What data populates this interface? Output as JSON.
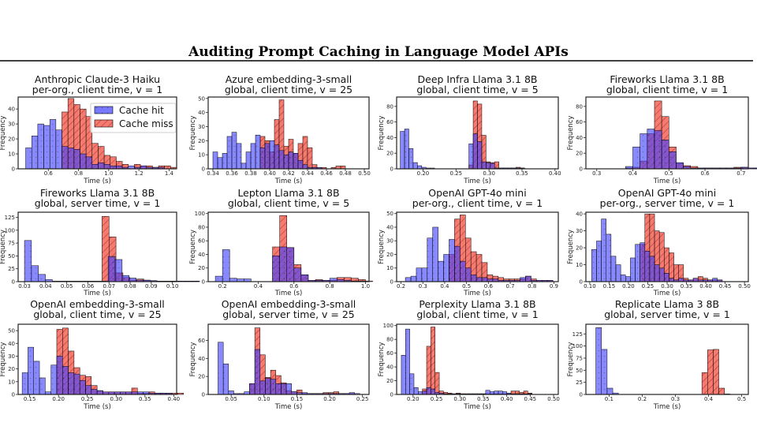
{
  "figure_title": "Auditing Prompt Caching in Language Model APIs",
  "legend": {
    "hit": "Cache hit",
    "miss": "Cache miss"
  },
  "colors": {
    "hit": "#3b3bff",
    "miss": "#f26a5e"
  },
  "chart_data": [
    {
      "type": "histogram",
      "title": [
        "Anthropic Claude-3 Haiku",
        "per-org., client time, v = 1"
      ],
      "xlabel": "Time (s)",
      "ylabel": "Frequency",
      "xlim": [
        0.4,
        1.45
      ],
      "ylim": [
        0,
        48
      ],
      "xticks": [
        "0.6",
        "0.8",
        "1.0",
        "1.2",
        "1.4"
      ],
      "yticks": [
        "0",
        "10",
        "20",
        "30",
        "40"
      ],
      "hit": {
        "start": 0.45,
        "width": 0.04,
        "counts": [
          14,
          22,
          30,
          29,
          33,
          26,
          15,
          14,
          13,
          10,
          8,
          3,
          4,
          3,
          2,
          2,
          1,
          2,
          1,
          2,
          1,
          1,
          1
        ]
      },
      "miss": {
        "start": 0.61,
        "width": 0.04,
        "counts": [
          0,
          0,
          38,
          47,
          43,
          40,
          35,
          17,
          15,
          9,
          8,
          5,
          3,
          0,
          3,
          2,
          2,
          1,
          2,
          2,
          1
        ]
      }
    },
    {
      "type": "histogram",
      "title": [
        "Azure embedding-3-small",
        "global, client time, v = 25"
      ],
      "xlabel": "Time (s)",
      "ylabel": "Frequency",
      "xlim": [
        0.335,
        0.505
      ],
      "ylim": [
        0,
        51
      ],
      "xticks": [
        "0.34",
        "0.36",
        "0.38",
        "0.40",
        "0.42",
        "0.44",
        "0.46",
        "0.48",
        "0.50"
      ],
      "yticks": [
        "0",
        "10",
        "20",
        "30",
        "40",
        "50"
      ],
      "hit": {
        "start": 0.34,
        "width": 0.005,
        "counts": [
          12,
          8,
          11,
          23,
          26,
          18,
          4,
          12,
          18,
          24,
          15,
          18,
          20,
          17,
          13,
          10,
          12,
          11,
          6,
          3,
          1,
          1,
          1
        ]
      },
      "miss": {
        "start": 0.39,
        "width": 0.005,
        "counts": [
          23,
          20,
          12,
          35,
          49,
          16,
          21,
          11,
          18,
          23,
          15,
          3,
          1,
          1,
          0,
          1,
          2,
          2
        ]
      }
    },
    {
      "type": "histogram",
      "title": [
        "Deep Infra Llama 3.1 8B",
        "global, client time, v = 5"
      ],
      "xlabel": "Time (s)",
      "ylabel": "Frequency",
      "xlim": [
        0.16,
        0.405
      ],
      "ylim": [
        0,
        92
      ],
      "xticks": [
        "0.20",
        "0.25",
        "0.30",
        "0.35",
        "0.40"
      ],
      "yticks": [
        "0",
        "20",
        "40",
        "60",
        "80"
      ],
      "hit": {
        "start": 0.1655,
        "width": 0.0065,
        "counts": [
          48,
          51,
          26,
          8,
          4,
          2,
          1,
          1,
          0,
          0,
          0,
          0,
          0,
          0,
          0,
          0,
          32,
          45,
          35,
          9,
          8,
          7,
          1,
          1,
          1,
          1,
          1,
          1,
          1
        ]
      },
      "miss": {
        "start": 0.2695,
        "width": 0.0065,
        "counts": [
          5,
          87,
          83,
          43,
          9,
          8,
          9,
          1,
          1,
          1,
          1,
          2,
          1
        ]
      }
    },
    {
      "type": "histogram",
      "title": [
        "Fireworks Llama 3.1 8B",
        "global, client time, v = 1"
      ],
      "xlabel": "Time (s)",
      "ylabel": "Frequency",
      "xlim": [
        0.27,
        0.72
      ],
      "ylim": [
        0,
        92
      ],
      "xticks": [
        "0.3",
        "0.4",
        "0.5",
        "0.6",
        "0.7"
      ],
      "yticks": [
        "0",
        "20",
        "40",
        "60",
        "80"
      ],
      "hit": {
        "start": 0.38,
        "width": 0.02,
        "counts": [
          3,
          28,
          45,
          51,
          49,
          37,
          22,
          8,
          3,
          1,
          1,
          1,
          1,
          1,
          1,
          1,
          2,
          1,
          1
        ]
      },
      "miss": {
        "start": 0.38,
        "width": 0.02,
        "counts": [
          1,
          2,
          10,
          45,
          87,
          67,
          28,
          7,
          4,
          3,
          1,
          1,
          1,
          1,
          1,
          2,
          2,
          1,
          1
        ]
      }
    },
    {
      "type": "histogram",
      "title": [
        "Fireworks Llama 3.1 8B",
        "global, server time, v = 1"
      ],
      "xlabel": "Time (s)",
      "ylabel": "Frequency",
      "xlim": [
        0.027,
        0.102
      ],
      "ylim": [
        0,
        135
      ],
      "xticks": [
        "0.03",
        "0.04",
        "0.05",
        "0.06",
        "0.07",
        "0.08",
        "0.09",
        "0.10"
      ],
      "yticks": [
        "0",
        "25",
        "50",
        "75",
        "100",
        "125"
      ],
      "hit": {
        "start": 0.03,
        "width": 0.0033,
        "counts": [
          80,
          31,
          14,
          4,
          1,
          1,
          1,
          1,
          1,
          1,
          1,
          1,
          49,
          43,
          12,
          7,
          3,
          3,
          2,
          1,
          1,
          1,
          1,
          1,
          1
        ]
      },
      "miss": {
        "start": 0.0667,
        "width": 0.0033,
        "counts": [
          127,
          87,
          17,
          8,
          3,
          5,
          2,
          1,
          1,
          1,
          1,
          1,
          1,
          1
        ]
      }
    },
    {
      "type": "histogram",
      "title": [
        "Lepton Llama 3.1 8B",
        "global, client time, v = 5"
      ],
      "xlabel": "Time (s)",
      "ylabel": "Frequency",
      "xlim": [
        0.12,
        1.02
      ],
      "ylim": [
        0,
        102
      ],
      "xticks": [
        "0.2",
        "0.4",
        "0.6",
        "0.8",
        "1.0"
      ],
      "yticks": [
        "0",
        "20",
        "40",
        "60",
        "80",
        "100"
      ],
      "hit": {
        "start": 0.16,
        "width": 0.04,
        "counts": [
          8,
          47,
          5,
          4,
          4,
          0,
          0,
          0,
          38,
          51,
          50,
          20,
          10,
          2,
          2,
          2,
          5,
          3,
          2,
          1,
          1
        ]
      },
      "miss": {
        "start": 0.48,
        "width": 0.04,
        "counts": [
          51,
          97,
          50,
          25,
          10,
          2,
          3,
          2,
          2,
          6,
          6,
          5,
          3,
          1
        ]
      }
    },
    {
      "type": "histogram",
      "title": [
        "OpenAI GPT-4o mini",
        "per-org., client time, v = 1"
      ],
      "xlabel": "Time (s)",
      "ylabel": "Frequency",
      "xlim": [
        0.18,
        0.92
      ],
      "ylim": [
        0,
        51
      ],
      "xticks": [
        "0.2",
        "0.3",
        "0.4",
        "0.5",
        "0.6",
        "0.7",
        "0.8",
        "0.9"
      ],
      "yticks": [
        "0",
        "10",
        "20",
        "30",
        "40",
        "50"
      ],
      "hit": {
        "start": 0.22,
        "width": 0.025,
        "counts": [
          3,
          4,
          10,
          10,
          32,
          40,
          15,
          20,
          31,
          26,
          15,
          10,
          5,
          3,
          3,
          2,
          2,
          1,
          1,
          1,
          1,
          3,
          4,
          1,
          1,
          1,
          1
        ]
      },
      "miss": {
        "start": 0.42,
        "width": 0.025,
        "counts": [
          20,
          46,
          49,
          32,
          22,
          20,
          14,
          5,
          4,
          3,
          2,
          2,
          2,
          2,
          4,
          2,
          1,
          1,
          1
        ]
      }
    },
    {
      "type": "histogram",
      "title": [
        "OpenAI GPT-4o mini",
        "per-org., server time, v = 1"
      ],
      "xlabel": "Time (s)",
      "ylabel": "Frequency",
      "xlim": [
        0.09,
        0.51
      ],
      "ylim": [
        0,
        41
      ],
      "xticks": [
        "0.10",
        "0.15",
        "0.20",
        "0.25",
        "0.30",
        "0.35",
        "0.40",
        "0.45",
        "0.50"
      ],
      "yticks": [
        "0",
        "10",
        "20",
        "30",
        "40"
      ],
      "hit": {
        "start": 0.105,
        "width": 0.0125,
        "counts": [
          19,
          24,
          37,
          28,
          15,
          10,
          4,
          3,
          14,
          22,
          23,
          18,
          15,
          10,
          8,
          5,
          2,
          1,
          2,
          1,
          1,
          2,
          1,
          1,
          1,
          2,
          1
        ]
      },
      "miss": {
        "start": 0.23,
        "width": 0.0125,
        "counts": [
          22,
          40,
          40,
          30,
          29,
          20,
          17,
          10,
          10,
          2,
          1,
          2,
          3,
          2,
          1,
          1,
          1
        ]
      }
    },
    {
      "type": "histogram",
      "title": [
        "OpenAI embedding-3-small",
        "global, client time, v = 25"
      ],
      "xlabel": "Time (s)",
      "ylabel": "Frequency",
      "xlim": [
        0.13,
        0.405
      ],
      "ylim": [
        0,
        55
      ],
      "xticks": [
        "0.15",
        "0.20",
        "0.25",
        "0.30",
        "0.35",
        "0.40"
      ],
      "yticks": [
        "0",
        "10",
        "20",
        "30",
        "40",
        "50"
      ],
      "hit": {
        "start": 0.137,
        "width": 0.01,
        "counts": [
          17,
          37,
          26,
          13,
          2,
          23,
          30,
          22,
          17,
          16,
          11,
          7,
          4,
          3,
          2,
          2,
          2,
          2,
          2,
          2,
          2,
          2,
          1,
          1,
          1,
          1
        ]
      },
      "miss": {
        "start": 0.197,
        "width": 0.01,
        "counts": [
          51,
          52,
          34,
          21,
          15,
          14,
          7,
          3,
          2,
          2,
          2,
          2,
          2,
          5,
          1,
          1,
          2,
          1,
          1,
          1,
          1,
          1
        ]
      }
    },
    {
      "type": "histogram",
      "title": [
        "OpenAI embedding-3-small",
        "global, server time, v = 25"
      ],
      "xlabel": "Time (s)",
      "ylabel": "Frequency",
      "xlim": [
        0.015,
        0.26
      ],
      "ylim": [
        0,
        78
      ],
      "xticks": [
        "0.05",
        "0.10",
        "0.15",
        "0.20",
        "0.25"
      ],
      "yticks": [
        "0",
        "20",
        "40",
        "60"
      ],
      "hit": {
        "start": 0.03,
        "width": 0.008,
        "counts": [
          58,
          34,
          4,
          1,
          1,
          3,
          12,
          50,
          15,
          18,
          17,
          12,
          12,
          12,
          3,
          2,
          2,
          1,
          1,
          1,
          1,
          1,
          1,
          1,
          1,
          2,
          1
        ]
      },
      "miss": {
        "start": 0.078,
        "width": 0.008,
        "counts": [
          12,
          74,
          44,
          19,
          27,
          21,
          13,
          4,
          3,
          5,
          1,
          1,
          1,
          1,
          2,
          2,
          3,
          1,
          1,
          1
        ]
      }
    },
    {
      "type": "histogram",
      "title": [
        "Perplexity Llama 3.1 8B",
        "global, client time, v = 1"
      ],
      "xlabel": "Time (s)",
      "ylabel": "Frequency",
      "xlim": [
        0.165,
        0.51
      ],
      "ylim": [
        0,
        102
      ],
      "xticks": [
        "0.20",
        "0.25",
        "0.30",
        "0.35",
        "0.40",
        "0.45",
        "0.50"
      ],
      "yticks": [
        "0",
        "20",
        "40",
        "60",
        "80",
        "100"
      ],
      "hit": {
        "start": 0.175,
        "width": 0.009,
        "counts": [
          57,
          95,
          30,
          10,
          4,
          5,
          10,
          8,
          3,
          2,
          1,
          1,
          1,
          1,
          1,
          1,
          1,
          1,
          1,
          1,
          6,
          4,
          5,
          5,
          4,
          2,
          1,
          1,
          1,
          1,
          1
        ]
      },
      "miss": {
        "start": 0.22,
        "width": 0.009,
        "counts": [
          8,
          70,
          98,
          32,
          5,
          3,
          2,
          1,
          2,
          1,
          1,
          1,
          1,
          1,
          1,
          1,
          1,
          1,
          1,
          1,
          1,
          5,
          5,
          3,
          5,
          2
        ]
      }
    },
    {
      "type": "histogram",
      "title": [
        "Replicate Llama 3 8B",
        "global, server time, v = 1"
      ],
      "xlabel": "Time (s)",
      "ylabel": "Frequency",
      "xlim": [
        0.03,
        0.52
      ],
      "ylim": [
        0,
        145
      ],
      "xticks": [
        "0.1",
        "0.2",
        "0.3",
        "0.4",
        "0.5"
      ],
      "yticks": [
        "0",
        "25",
        "50",
        "75",
        "100",
        "125"
      ],
      "hit": {
        "start": 0.06,
        "width": 0.017,
        "counts": [
          138,
          93,
          13,
          3
        ]
      },
      "miss": {
        "start": 0.38,
        "width": 0.017,
        "counts": [
          45,
          92,
          93,
          13,
          1
        ]
      }
    }
  ]
}
